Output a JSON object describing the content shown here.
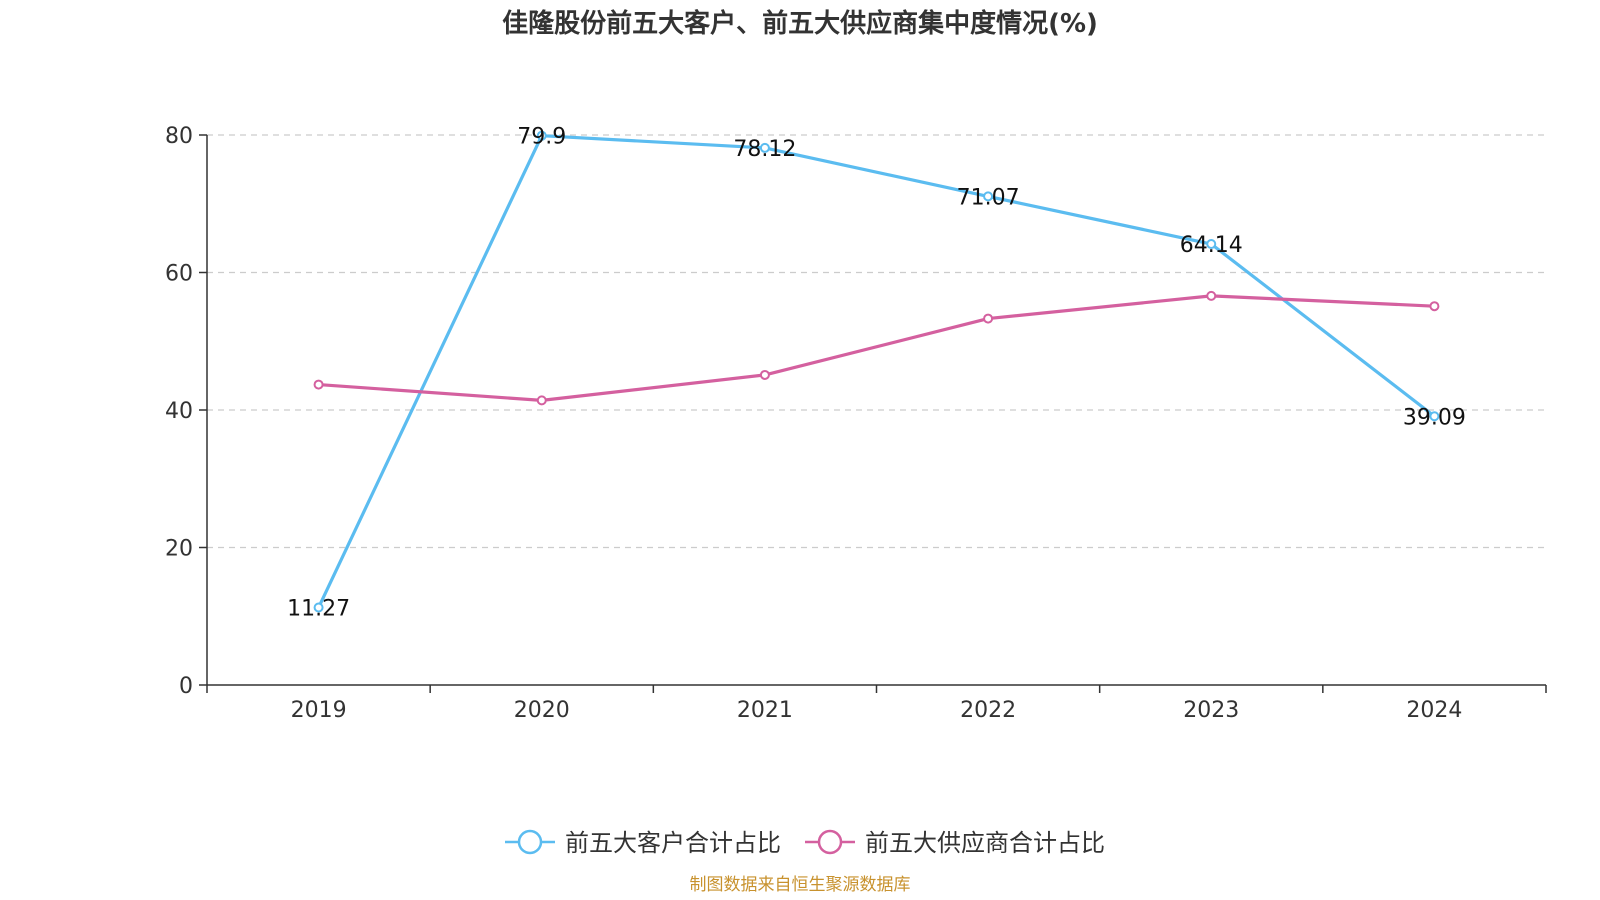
{
  "chart_data": {
    "type": "line",
    "title": "佳隆股份前五大客户、前五大供应商集中度情况(%)",
    "xlabel": "",
    "ylabel": "",
    "categories": [
      "2019",
      "2020",
      "2021",
      "2022",
      "2023",
      "2024"
    ],
    "ylim": [
      0,
      80
    ],
    "yticks": [
      0,
      20,
      40,
      60,
      80
    ],
    "grid": true,
    "legend_position": "bottom-center",
    "series": [
      {
        "name": "前五大客户合计占比",
        "color": "#5bbcf0",
        "values": [
          11.27,
          79.9,
          78.12,
          71.07,
          64.14,
          39.09
        ],
        "labels": [
          "11.27",
          "79.9",
          "78.12",
          "71.07",
          "64.14",
          "39.09"
        ],
        "show_labels": true
      },
      {
        "name": "前五大供应商合计占比",
        "color": "#d4609f",
        "values": [
          43.7,
          41.4,
          45.1,
          53.3,
          56.6,
          55.1
        ],
        "show_labels": false
      }
    ],
    "source": "制图数据来自恒生聚源数据库",
    "source_color": "#c8922e"
  }
}
